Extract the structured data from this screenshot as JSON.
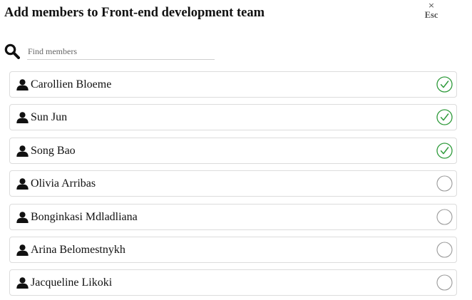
{
  "dialog": {
    "title": "Add members to Front-end development team",
    "close": {
      "symbol": "×",
      "label": "Esc"
    }
  },
  "search": {
    "icon": "search-icon",
    "placeholder": "Find members",
    "value": ""
  },
  "colors": {
    "checked": "#2e9a3a",
    "unchecked": "#9a9a9a",
    "border": "#dcdcdc"
  },
  "members": [
    {
      "name": "Carollien Bloeme",
      "selected": true
    },
    {
      "name": "Sun Jun",
      "selected": true
    },
    {
      "name": "Song Bao",
      "selected": true
    },
    {
      "name": "Olivia Arribas",
      "selected": false
    },
    {
      "name": "Bonginkasi Mdladliana",
      "selected": false
    },
    {
      "name": "Arina Belomestnykh",
      "selected": false
    },
    {
      "name": "Jacqueline Likoki",
      "selected": false
    }
  ]
}
